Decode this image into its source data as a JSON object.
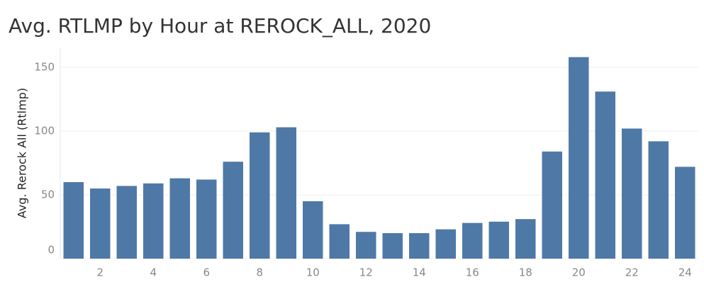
{
  "chart_data": {
    "type": "bar",
    "title": "Avg. RTLMP by Hour at REROCK_ALL, 2020",
    "y_label": "Avg. Rerock All (Rtlmp)",
    "categories": [
      null,
      "2",
      null,
      "4",
      null,
      "6",
      null,
      "8",
      null,
      "10",
      null,
      "12",
      null,
      "14",
      null,
      "16",
      null,
      "18",
      null,
      "20",
      null,
      "22",
      null,
      "24"
    ],
    "values": [
      60,
      55,
      57,
      59,
      63,
      62,
      76,
      99,
      103,
      45,
      27,
      21,
      20,
      20,
      23,
      28,
      29,
      31,
      84,
      158,
      131,
      102,
      92,
      72
    ],
    "color": "#4e79a7",
    "ylim": [
      0,
      165
    ],
    "yticks": [
      0,
      50,
      100,
      150
    ],
    "grid": true
  }
}
